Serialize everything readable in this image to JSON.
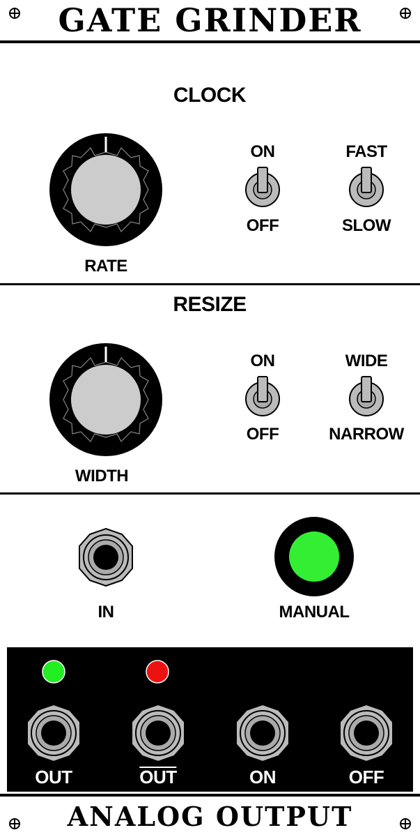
{
  "module": {
    "title": "GATE GRINDER",
    "footer": "ANALOG OUTPUT"
  },
  "clock": {
    "title": "CLOCK",
    "knob_label": "RATE",
    "switch1": {
      "top": "ON",
      "bottom": "OFF"
    },
    "switch2": {
      "top": "FAST",
      "bottom": "SLOW"
    }
  },
  "resize": {
    "title": "RESIZE",
    "knob_label": "WIDTH",
    "switch1": {
      "top": "ON",
      "bottom": "OFF"
    },
    "switch2": {
      "top": "WIDE",
      "bottom": "NARROW"
    }
  },
  "io": {
    "input_label": "IN",
    "button_label": "MANUAL"
  },
  "outputs": {
    "labels": [
      "OUT",
      "OUT",
      "ON",
      "OFF"
    ],
    "led1_color": "#22ee22",
    "led2_color": "#ee1111"
  },
  "colors": {
    "panel": "#ffffff",
    "knob_body": "#000000",
    "knob_cap": "#cccccc",
    "manual_button": "#33ee33"
  }
}
